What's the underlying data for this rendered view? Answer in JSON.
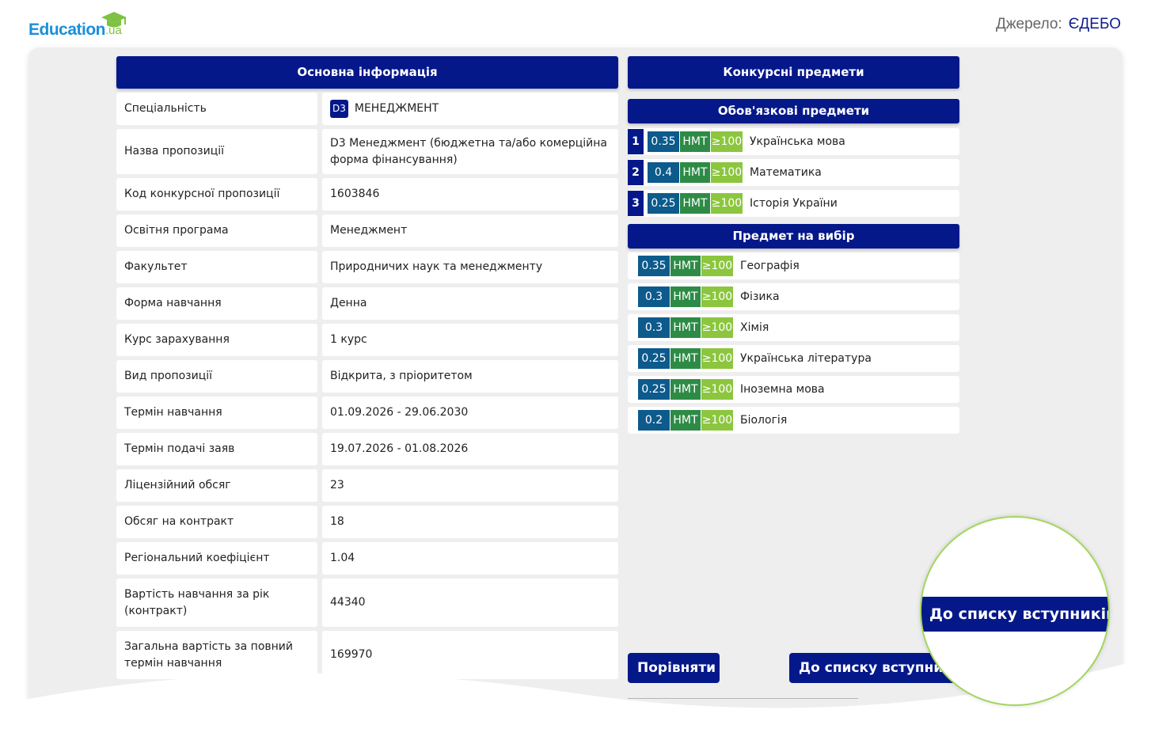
{
  "brand": {
    "name": "Education",
    "suffix": ".ua"
  },
  "source": {
    "label": "Джерело:",
    "value": "ЄДЕБО"
  },
  "main_info": {
    "title": "Основна інформація",
    "rows": [
      {
        "label": "Спеціальність",
        "badge": "D3",
        "value": "МЕНЕДЖМЕНТ"
      },
      {
        "label": "Назва пропозиції",
        "value": "D3 Менеджмент (бюджетна та/або комерційна форма фінансування)"
      },
      {
        "label": "Код конкурсної пропозиції",
        "value": "1603846"
      },
      {
        "label": "Освітня програма",
        "value": "Менеджмент"
      },
      {
        "label": "Факультет",
        "value": "Природничих наук та менеджменту"
      },
      {
        "label": "Форма навчання",
        "value": "Денна"
      },
      {
        "label": "Курс зарахування",
        "value": "1 курс"
      },
      {
        "label": "Вид пропозиції",
        "value": "Відкрита, з пріоритетом"
      },
      {
        "label": "Термін навчання",
        "value": "01.09.2026 - 29.06.2030"
      },
      {
        "label": "Термін подачі заяв",
        "value": "19.07.2026 - 01.08.2026"
      },
      {
        "label": "Ліцензійний обсяг",
        "value": "23"
      },
      {
        "label": "Обсяг на контракт",
        "value": "18"
      },
      {
        "label": "Регіональний коефіцієнт",
        "value": "1.04"
      },
      {
        "label": "Вартість навчання за рік (контракт)",
        "value": "44340"
      },
      {
        "label": "Загальна вартість за повний термін навчання",
        "value": "169970"
      }
    ]
  },
  "subjects": {
    "title": "Конкурсні предмети",
    "required_title": "Обов'язкові предмети",
    "required": [
      {
        "num": "1",
        "coef": "0.35",
        "type": "НМТ",
        "min": "≥100",
        "name": "Українська мова"
      },
      {
        "num": "2",
        "coef": "0.4",
        "type": "НМТ",
        "min": "≥100",
        "name": "Математика"
      },
      {
        "num": "3",
        "coef": "0.25",
        "type": "НМТ",
        "min": "≥100",
        "name": "Історія України"
      }
    ],
    "elective_title": "Предмет на вибір",
    "elective": [
      {
        "coef": "0.35",
        "type": "НМТ",
        "min": "≥100",
        "name": "Географія"
      },
      {
        "coef": "0.3",
        "type": "НМТ",
        "min": "≥100",
        "name": "Фізика"
      },
      {
        "coef": "0.3",
        "type": "НМТ",
        "min": "≥100",
        "name": "Хімія"
      },
      {
        "coef": "0.25",
        "type": "НМТ",
        "min": "≥100",
        "name": "Українська література"
      },
      {
        "coef": "0.25",
        "type": "НМТ",
        "min": "≥100",
        "name": "Іноземна мова"
      },
      {
        "coef": "0.2",
        "type": "НМТ",
        "min": "≥100",
        "name": "Біологія"
      }
    ]
  },
  "buttons": {
    "compare": "Порівняти",
    "to_list": "До списку вступників"
  },
  "colors": {
    "navy": "#05188a",
    "coef": "#0d5a8c",
    "nmt": "#2e8b46",
    "min": "#8cc63f"
  }
}
